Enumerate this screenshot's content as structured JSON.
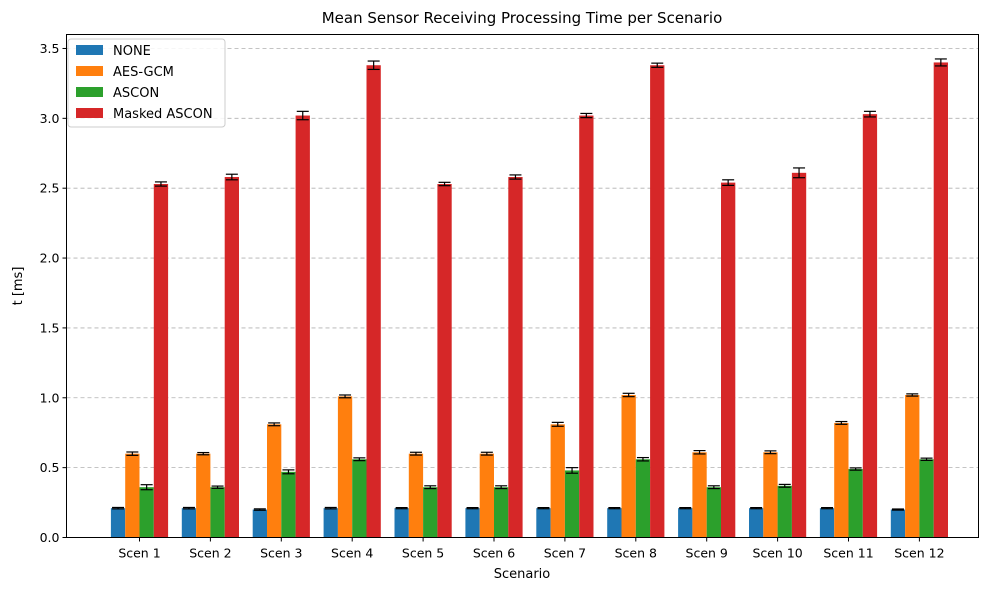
{
  "chart_data": {
    "type": "bar",
    "title": "Mean Sensor Receiving Processing Time per Scenario",
    "xlabel": "Scenario",
    "ylabel": "t [ms]",
    "ylim": [
      0,
      3.6
    ],
    "yticks": [
      0.0,
      0.5,
      1.0,
      1.5,
      2.0,
      2.5,
      3.0,
      3.5
    ],
    "ytick_labels": [
      "0.0",
      "0.5",
      "1.0",
      "1.5",
      "2.0",
      "2.5",
      "3.0",
      "3.5"
    ],
    "grid": "y-dashed",
    "legend_position": "top-left",
    "categories": [
      "Scen 1",
      "Scen 2",
      "Scen 3",
      "Scen 4",
      "Scen 5",
      "Scen 6",
      "Scen 7",
      "Scen 8",
      "Scen 9",
      "Scen 10",
      "Scen 11",
      "Scen 12"
    ],
    "series": [
      {
        "name": "NONE",
        "color": "#1f77b4",
        "values": [
          0.21,
          0.21,
          0.2,
          0.21,
          0.21,
          0.21,
          0.21,
          0.21,
          0.21,
          0.21,
          0.21,
          0.2
        ],
        "errors": [
          0.005,
          0.005,
          0.005,
          0.005,
          0.004,
          0.004,
          0.004,
          0.004,
          0.004,
          0.004,
          0.004,
          0.004
        ]
      },
      {
        "name": "AES-GCM",
        "color": "#ff7f0e",
        "values": [
          0.6,
          0.6,
          0.81,
          1.01,
          0.6,
          0.6,
          0.81,
          1.02,
          0.61,
          0.61,
          0.82,
          1.02
        ],
        "errors": [
          0.012,
          0.008,
          0.01,
          0.01,
          0.01,
          0.01,
          0.014,
          0.012,
          0.012,
          0.01,
          0.01,
          0.008
        ]
      },
      {
        "name": "ASCON",
        "color": "#2ca02c",
        "values": [
          0.36,
          0.36,
          0.47,
          0.56,
          0.36,
          0.36,
          0.48,
          0.56,
          0.36,
          0.37,
          0.49,
          0.56
        ],
        "errors": [
          0.018,
          0.008,
          0.014,
          0.01,
          0.01,
          0.01,
          0.02,
          0.012,
          0.01,
          0.01,
          0.008,
          0.008
        ]
      },
      {
        "name": "Masked ASCON",
        "color": "#d62728",
        "values": [
          2.53,
          2.58,
          3.02,
          3.38,
          2.53,
          2.58,
          3.02,
          3.38,
          2.54,
          2.61,
          3.03,
          3.4
        ],
        "errors": [
          0.015,
          0.02,
          0.03,
          0.03,
          0.012,
          0.015,
          0.015,
          0.015,
          0.02,
          0.035,
          0.02,
          0.025
        ]
      }
    ]
  }
}
